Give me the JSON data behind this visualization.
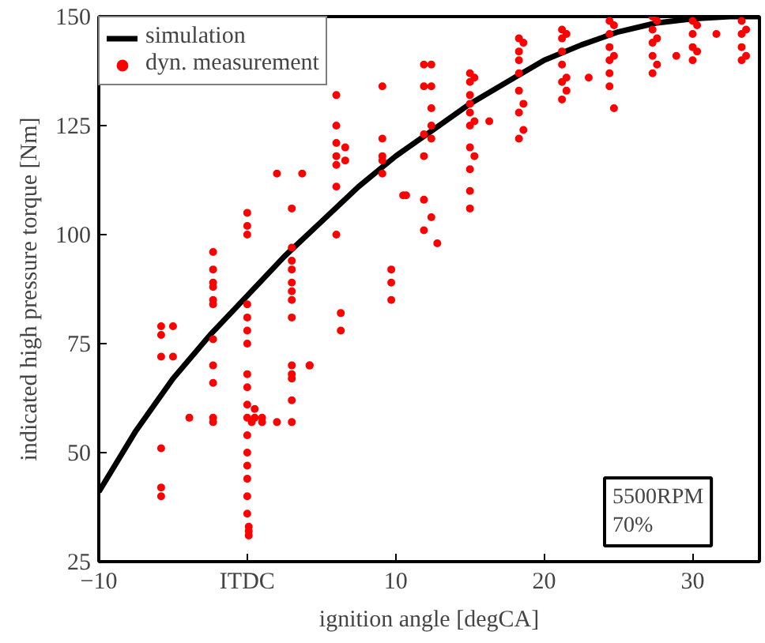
{
  "chart_data": {
    "type": "scatter",
    "xlabel": "ignition angle [degCA]",
    "ylabel": "indicated high pressure torque [Nm]",
    "xlim": [
      -10,
      34.5
    ],
    "ylim": [
      25,
      150
    ],
    "xticks": [
      -10,
      {
        "value": 0,
        "label": "ITDC"
      },
      10,
      20,
      30
    ],
    "yticks": [
      25,
      50,
      75,
      100,
      125,
      150
    ],
    "grid": false,
    "legend": "top left",
    "annotations": [
      "5500RPM\n70%"
    ],
    "series": [
      {
        "name": "simulation",
        "type": "line",
        "color": "#000000",
        "marker": "none",
        "x": [
          -10,
          -7.5,
          -5,
          -2.5,
          0,
          2.5,
          5,
          7.5,
          10,
          12.5,
          15,
          17.5,
          20,
          22.5,
          25,
          27.5,
          30,
          32.5,
          34.5
        ],
        "values": [
          41,
          55,
          67,
          77,
          86,
          95,
          103,
          111,
          118,
          124,
          130,
          135,
          140,
          143.5,
          146.5,
          148.5,
          149.5,
          150,
          150
        ]
      },
      {
        "name": "dyn. measurement",
        "color": "#ff0000",
        "marker": "circle",
        "x": [
          -5.8,
          -5.8,
          -5.8,
          -5.8,
          -5.8,
          -5.8,
          -5.0,
          -5.0,
          -3.9,
          -2.3,
          -2.3,
          -2.3,
          -2.3,
          -2.3,
          -2.3,
          -2.3,
          -2.3,
          -2.3,
          -2.3,
          -2.3,
          0,
          0,
          0,
          0,
          0,
          0,
          0,
          0,
          0,
          0,
          0,
          0,
          0,
          0,
          0,
          0,
          0,
          0.1,
          0.1,
          0.1,
          0.3,
          0.5,
          0.5,
          1.0,
          1.0,
          2.0,
          2.0,
          3.0,
          3.0,
          3.0,
          3.0,
          3.0,
          3.0,
          3.0,
          3.0,
          3.0,
          3.0,
          3.0,
          3.0,
          3.0,
          3.7,
          4.2,
          4.2,
          6.0,
          6.0,
          6.0,
          6.0,
          6.0,
          6.0,
          6.0,
          6.3,
          6.3,
          6.6,
          6.6,
          9.1,
          9.1,
          9.1,
          9.1,
          9.1,
          9.7,
          9.7,
          9.7,
          10.5,
          10.7,
          11.9,
          11.9,
          11.9,
          11.9,
          11.9,
          11.9,
          12.4,
          12.4,
          12.4,
          12.4,
          12.4,
          12.4,
          12.8,
          15,
          15,
          15,
          15,
          15,
          15,
          15,
          15,
          15,
          15,
          15.3,
          15.3,
          15.3,
          16.3,
          18.3,
          18.3,
          18.3,
          18.3,
          18.3,
          18.3,
          18.3,
          18.6,
          18.6,
          18.6,
          21.2,
          21.2,
          21.2,
          21.2,
          21.2,
          21.2,
          21.5,
          21.5,
          21.5,
          23,
          24.4,
          24.4,
          24.4,
          24.4,
          24.4,
          24.4,
          24.7,
          24.7,
          24.7,
          27.3,
          27.3,
          27.3,
          27.3,
          27.3,
          27.6,
          27.6,
          27.6,
          28.9,
          30,
          30,
          30,
          30,
          30.3,
          30.3,
          31.6,
          33.3,
          33.3,
          33.3,
          33.3,
          33.6,
          33.6
        ],
        "values": [
          79,
          77,
          72,
          51,
          42,
          40,
          79,
          72,
          58,
          96,
          92,
          89,
          88,
          85,
          84,
          76,
          70,
          66,
          58,
          57,
          105,
          102,
          100,
          84,
          81,
          78,
          75,
          68,
          65,
          61,
          58,
          54,
          50,
          47,
          44,
          40,
          36,
          33,
          31,
          32,
          57,
          58,
          60,
          57,
          58,
          57,
          114,
          106,
          97,
          94,
          92,
          89,
          87,
          85,
          81,
          70,
          68,
          67,
          62,
          57,
          114,
          70,
          70,
          132,
          125,
          121,
          118,
          116,
          111,
          100,
          82,
          78,
          120,
          117,
          134,
          122,
          118,
          117,
          114,
          92,
          89,
          85,
          109,
          109,
          139,
          134,
          123,
          118,
          108,
          101,
          139,
          134,
          129,
          125,
          122,
          104,
          98,
          137,
          135,
          132,
          130,
          128,
          125,
          120,
          115,
          110,
          106,
          136,
          126,
          118,
          126,
          145,
          142,
          140,
          137,
          133,
          128,
          122,
          144,
          130,
          124,
          147,
          145,
          142,
          139,
          135,
          131,
          146,
          136,
          133,
          136,
          149,
          146,
          143,
          140,
          137,
          134,
          148,
          141,
          129,
          150,
          147,
          144,
          141,
          137,
          149,
          145,
          139,
          141,
          149,
          146,
          143,
          140,
          148,
          142,
          146,
          149,
          146,
          143,
          140,
          147,
          141
        ]
      }
    ]
  }
}
